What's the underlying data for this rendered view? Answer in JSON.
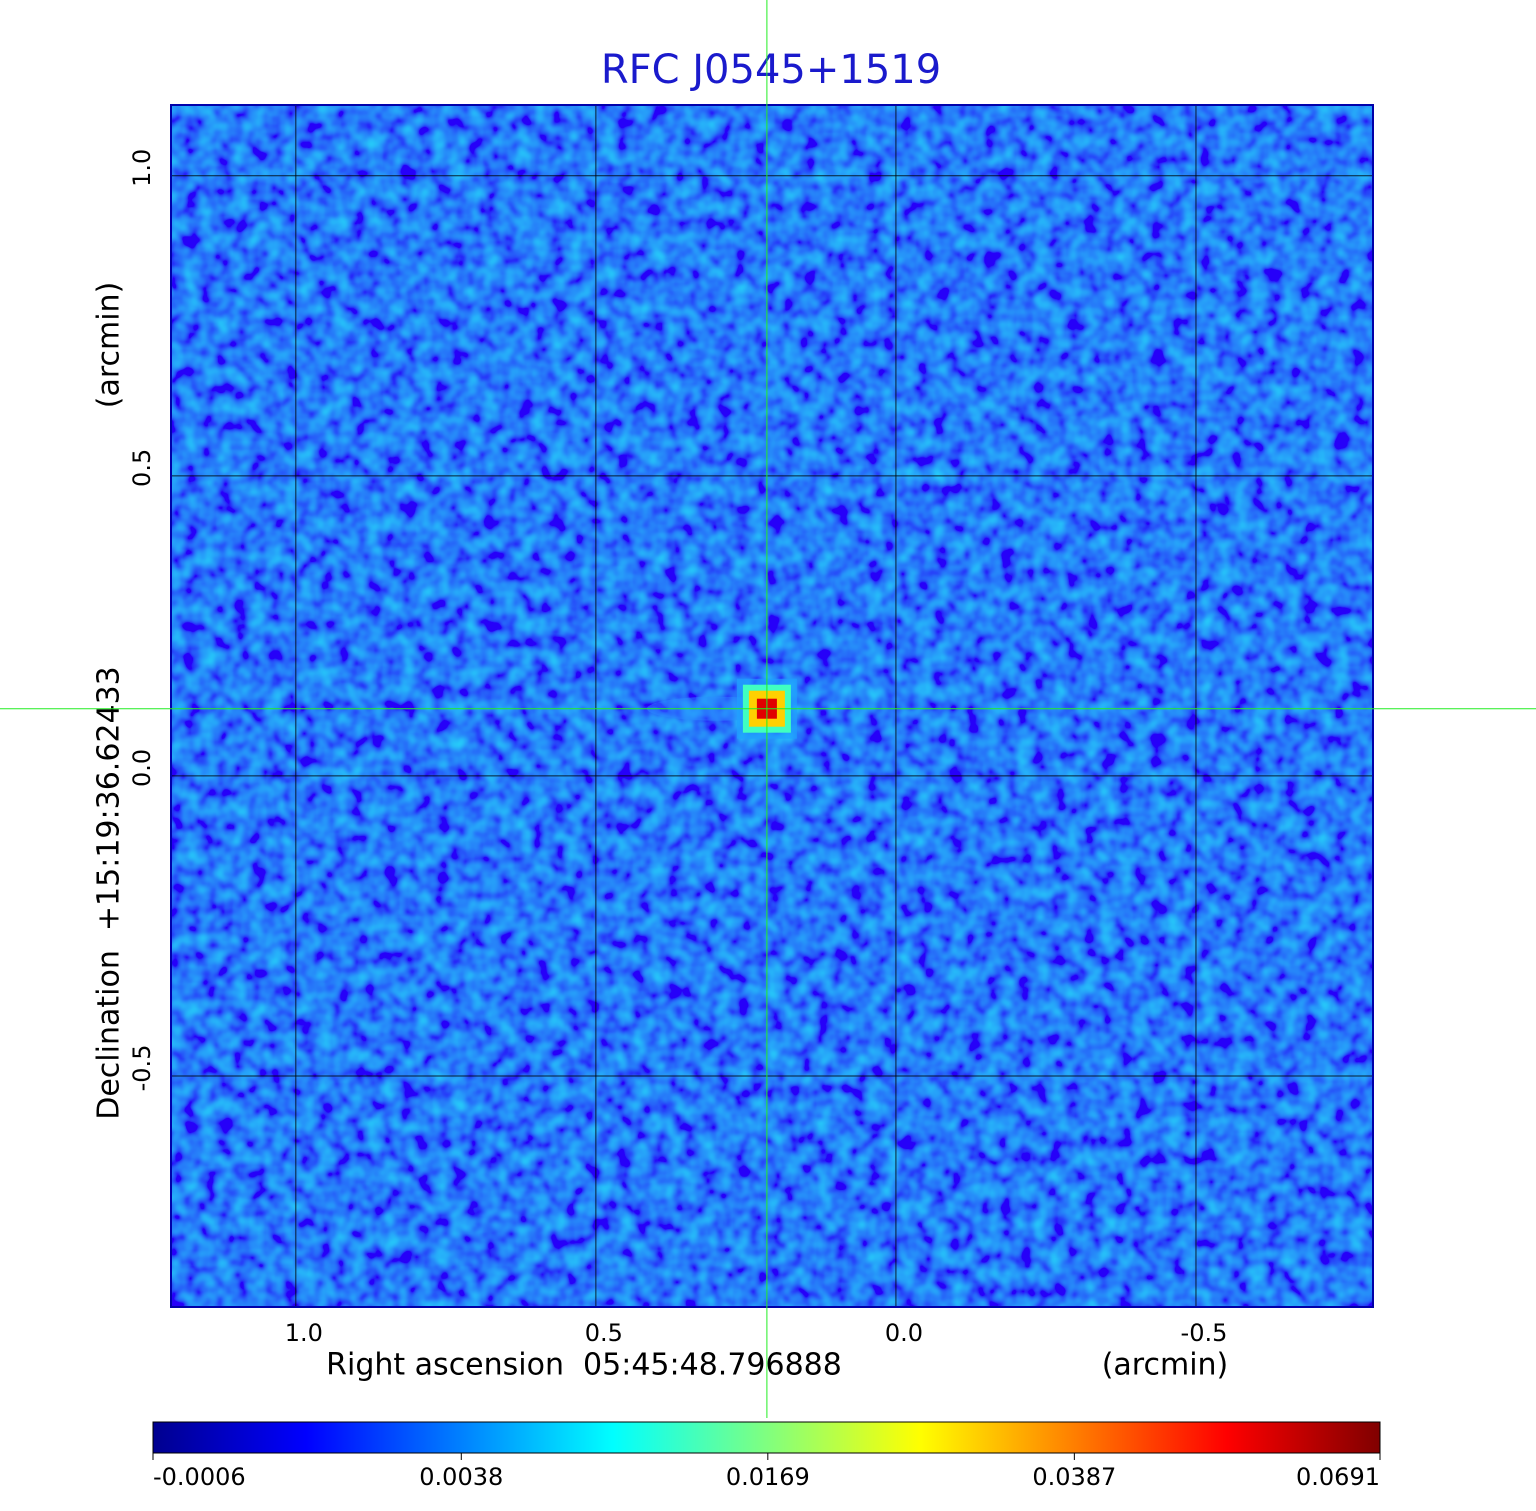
{
  "chart_data": {
    "type": "image",
    "title": "RFC J0545+1519",
    "x_label": "Right ascension  05:45:48.796888",
    "x_unit": "(arcmin)",
    "y_label": "Declination  +15:19:36.62433",
    "y_unit": "(arcmin)",
    "xlim": [
      1.208,
      -0.795
    ],
    "ylim": [
      -0.885,
      1.118
    ],
    "xticks": [
      {
        "value": 1.0,
        "label": "1.0"
      },
      {
        "value": 0.5,
        "label": "0.5"
      },
      {
        "value": 0,
        "label": "0.0"
      },
      {
        "value": -0.5,
        "label": "-0.5"
      }
    ],
    "yticks": [
      {
        "value": -0.5,
        "label": "-0.5"
      },
      {
        "value": 0,
        "label": "0.0"
      },
      {
        "value": 0.5,
        "label": "0.5"
      },
      {
        "value": 1.0,
        "label": "1.0"
      }
    ],
    "grid": true,
    "peak": [
      0.215,
      0.112
    ],
    "colormap": "jet",
    "color_scale": "sqrt",
    "clim": [
      -0.0006,
      0.0691
    ],
    "cticks": [
      -0.0006,
      0.0038,
      0.0169,
      0.0387,
      0.0691
    ]
  }
}
